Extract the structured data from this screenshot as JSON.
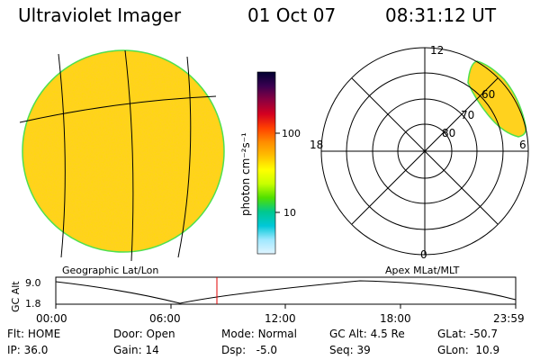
{
  "header": {
    "title": "Ultraviolet Imager",
    "date": "01 Oct 07",
    "time": "08:31:12 UT"
  },
  "colorbar": {
    "label": "photon cm⁻²s⁻¹",
    "ticks": [
      "100",
      "10"
    ],
    "scale": "log",
    "colors": [
      "#000030",
      "#3a0050",
      "#8b0040",
      "#d40020",
      "#ff4000",
      "#ff8c00",
      "#ffc000",
      "#ffff00",
      "#c8ff00",
      "#50e000",
      "#00c890",
      "#00c8d8",
      "#a0e8ff",
      "#e0f4ff"
    ]
  },
  "geo_panel": {
    "caption": "Geographic Lat/Lon",
    "disk_color": "#ffd21e",
    "rim_color": "#4ee04e"
  },
  "polar_panel": {
    "caption": "Apex MLat/MLT",
    "mlt_labels": [
      "12",
      "18",
      "6",
      "0"
    ],
    "mlat_labels": [
      "60",
      "70",
      "80"
    ]
  },
  "alt_plot": {
    "axis_label": "GC Alt",
    "y_ticks": [
      "9.0",
      "1.8"
    ],
    "x_ticks": [
      "00:00",
      "06:00",
      "12:00",
      "18:00",
      "23:59"
    ],
    "marker_time": "08:31",
    "marker_color": "#e00000"
  },
  "status": {
    "row1": [
      {
        "label": "Flt:",
        "value": "HOME"
      },
      {
        "label": "Door:",
        "value": "Open"
      },
      {
        "label": "Mode:",
        "value": "Normal"
      },
      {
        "label": "GC Alt:",
        "value": "4.5 Re"
      },
      {
        "label": "GLat:",
        "value": "-50.7"
      }
    ],
    "row2": [
      {
        "label": "IP:",
        "value": "36.0"
      },
      {
        "label": "Gain:",
        "value": "14"
      },
      {
        "label": "Dsp:",
        "value": "-5.0"
      },
      {
        "label": "Seq:",
        "value": "39"
      },
      {
        "label": "GLon:",
        "value": "10.9"
      }
    ]
  }
}
